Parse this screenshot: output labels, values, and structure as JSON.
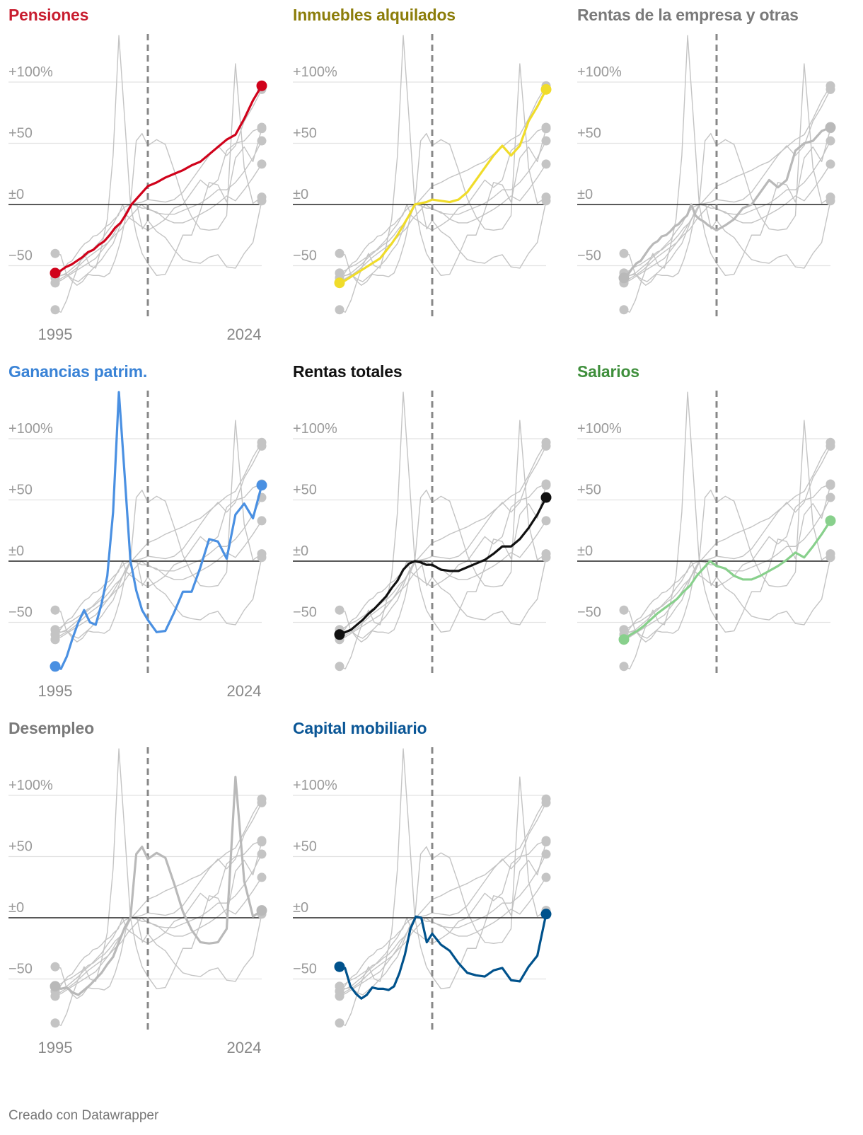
{
  "footer": {
    "credit": "Creado con Datawrapper"
  },
  "colors": {
    "grid": "#e2e2e2",
    "zero_line": "#222222",
    "reference_line": "#888888",
    "context_line": "#c4c4c4",
    "context_dot": "#c4c4c4",
    "tick_text": "#9a9a9a",
    "axis_year_text": "#888888"
  },
  "chart_data": {
    "type": "line",
    "layout": "small-multiples",
    "x_start": 1995,
    "x_end": 2024,
    "reference_year": 2008,
    "ylim": [
      -88,
      138
    ],
    "y_ticks": [
      {
        "value": 100,
        "label": "+100%"
      },
      {
        "value": 50,
        "label": "+50"
      },
      {
        "value": 0,
        "label": "±0"
      },
      {
        "value": -50,
        "label": "−50"
      }
    ],
    "x_tick_labels": [
      "1995",
      "2024"
    ],
    "series": [
      {
        "name": "Pensiones",
        "color": "#d0021b",
        "title_color": "#c81d2f",
        "values": [
          -56,
          -54,
          -51,
          -49,
          -46,
          -43,
          -39,
          -37,
          -33,
          -30,
          -25,
          -19,
          -15,
          -8,
          0,
          5,
          10,
          15,
          18,
          22,
          25,
          28,
          32,
          35,
          41,
          47,
          53,
          57,
          70,
          85,
          97
        ]
      },
      {
        "name": "Inmuebles alquilados",
        "color": "#f0dc2a",
        "title_color": "#8c7d0a",
        "values": [
          -64,
          -62,
          -59,
          -56,
          -53,
          -50,
          -47,
          -44,
          -38,
          -32,
          -25,
          -17,
          -9,
          0,
          1,
          2,
          4,
          3,
          2,
          4,
          10,
          20,
          30,
          40,
          48,
          40,
          48,
          68,
          80,
          94
        ]
      },
      {
        "name": "Rentas de la empresa y otras",
        "color": "#b9b9b9",
        "title_color": "#7a7a7a",
        "values": [
          -60,
          -57,
          -52,
          -48,
          -46,
          -41,
          -36,
          -32,
          -30,
          -26,
          -25,
          -22,
          -18,
          -16,
          -12,
          -9,
          0,
          -9,
          -12,
          -14,
          -17,
          -19,
          -21,
          -17,
          -12,
          -3,
          0,
          10,
          20,
          14,
          20,
          44,
          50,
          52,
          60,
          63
        ]
      },
      {
        "name": "Ganancias patrim.",
        "color": "#4a90e2",
        "title_color": "#3a83d6",
        "values": [
          -86,
          -88,
          -78,
          -63,
          -50,
          -40,
          -50,
          -52,
          -35,
          -12,
          40,
          138,
          70,
          0,
          -24,
          -40,
          -48,
          -58,
          -57,
          -42,
          -25,
          -25,
          -5,
          18,
          16,
          2,
          38,
          47,
          35,
          62
        ]
      },
      {
        "name": "Rentas totales",
        "color": "#111111",
        "title_color": "#111111",
        "values": [
          -60,
          -58,
          -56,
          -52,
          -48,
          -43,
          -39,
          -34,
          -29,
          -22,
          -16,
          -7,
          -2,
          0,
          -1,
          -3,
          -3,
          -7,
          -8,
          -8,
          -5,
          -2,
          1,
          6,
          12,
          12,
          18,
          27,
          38,
          52
        ]
      },
      {
        "name": "Salarios",
        "color": "#88d08c",
        "title_color": "#3f8f3c",
        "values": [
          -64,
          -60,
          -57,
          -53,
          -48,
          -43,
          -39,
          -35,
          -31,
          -25,
          -20,
          -12,
          -6,
          0,
          -4,
          -6,
          -12,
          -15,
          -15,
          -12,
          -8,
          -4,
          1,
          7,
          3,
          12,
          22,
          33
        ]
      },
      {
        "name": "Desempleo",
        "color": "#b9b9b9",
        "title_color": "#7a7a7a",
        "values": [
          -56,
          -58,
          -57,
          -61,
          -63,
          -59,
          -55,
          -50,
          -45,
          -38,
          -32,
          -20,
          -8,
          0,
          52,
          58,
          48,
          53,
          49,
          28,
          5,
          -10,
          -20,
          -21,
          -20,
          -9,
          115,
          30,
          1,
          6
        ]
      },
      {
        "name": "Capital mobiliario",
        "color": "#00528c",
        "title_color": "#0a5696",
        "values": [
          -40,
          -41,
          -56,
          -62,
          -66,
          -63,
          -57,
          -58,
          -58,
          -59,
          -56,
          -45,
          -30,
          -9,
          1,
          0,
          -20,
          -13,
          -22,
          -27,
          -37,
          -45,
          -47,
          -48,
          -43,
          -41,
          -51,
          -52,
          -40,
          -31,
          3
        ]
      }
    ],
    "panel_order": [
      "Pensiones",
      "Inmuebles alquilados",
      "Rentas de la empresa y otras",
      "Ganancias patrim.",
      "Rentas totales",
      "Salarios",
      "Desempleo",
      "Capital mobiliario"
    ],
    "x_axis_label_panels": [
      "Pensiones",
      "Ganancias patrim.",
      "Desempleo"
    ]
  }
}
